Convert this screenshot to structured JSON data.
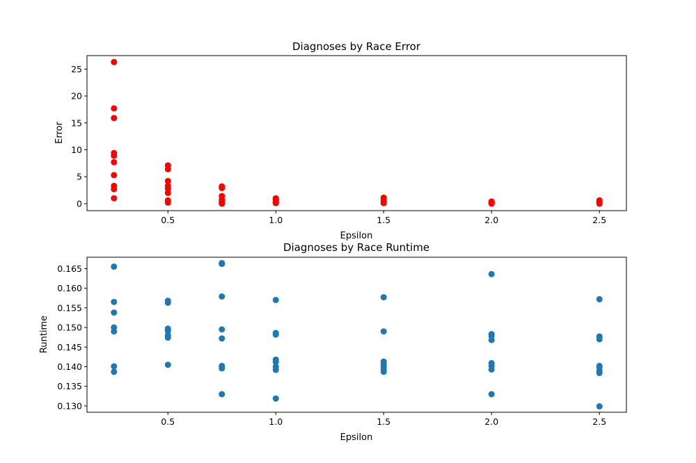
{
  "chart_data": [
    {
      "type": "scatter",
      "title": "Diagnoses by Race Error",
      "xlabel": "Epsilon",
      "ylabel": "Error",
      "xlim": [
        0.125,
        2.625
      ],
      "ylim": [
        -1.3,
        27.5
      ],
      "xticks": [
        0.5,
        1.0,
        1.5,
        2.0,
        2.5
      ],
      "xtick_labels": [
        "0.5",
        "1.0",
        "1.5",
        "2.0",
        "2.5"
      ],
      "yticks": [
        0,
        5,
        10,
        15,
        20,
        25
      ],
      "ytick_labels": [
        "0",
        "5",
        "10",
        "15",
        "20",
        "25"
      ],
      "color": "#ff0000",
      "series": [
        {
          "name": "Error",
          "points": [
            [
              0.25,
              26.3
            ],
            [
              0.25,
              17.7
            ],
            [
              0.25,
              15.9
            ],
            [
              0.25,
              9.4
            ],
            [
              0.25,
              8.9
            ],
            [
              0.25,
              7.7
            ],
            [
              0.25,
              5.3
            ],
            [
              0.25,
              3.3
            ],
            [
              0.25,
              2.7
            ],
            [
              0.25,
              1.0
            ],
            [
              0.5,
              7.1
            ],
            [
              0.5,
              6.4
            ],
            [
              0.5,
              4.2
            ],
            [
              0.5,
              3.3
            ],
            [
              0.5,
              2.8
            ],
            [
              0.5,
              2.0
            ],
            [
              0.5,
              0.6
            ],
            [
              0.5,
              0.2
            ],
            [
              0.75,
              3.2
            ],
            [
              0.75,
              2.9
            ],
            [
              0.75,
              1.4
            ],
            [
              0.75,
              0.7
            ],
            [
              0.75,
              0.4
            ],
            [
              0.75,
              0.1
            ],
            [
              0.75,
              0.0
            ],
            [
              1.0,
              1.0
            ],
            [
              1.0,
              0.7
            ],
            [
              1.0,
              0.4
            ],
            [
              1.0,
              0.2
            ],
            [
              1.0,
              0.1
            ],
            [
              1.5,
              1.1
            ],
            [
              1.5,
              0.8
            ],
            [
              1.5,
              0.5
            ],
            [
              1.5,
              0.2
            ],
            [
              1.5,
              0.1
            ],
            [
              2.0,
              0.4
            ],
            [
              2.0,
              0.2
            ],
            [
              2.0,
              0.1
            ],
            [
              2.0,
              0.0
            ],
            [
              2.5,
              0.6
            ],
            [
              2.5,
              0.3
            ],
            [
              2.5,
              0.1
            ],
            [
              2.5,
              0.0
            ]
          ]
        }
      ]
    },
    {
      "type": "scatter",
      "title": "Diagnoses by Race Runtime",
      "xlabel": "Epsilon",
      "ylabel": "Runtime",
      "xlim": [
        0.125,
        2.625
      ],
      "ylim": [
        0.1284,
        0.1679
      ],
      "xticks": [
        0.5,
        1.0,
        1.5,
        2.0,
        2.5
      ],
      "xtick_labels": [
        "0.5",
        "1.0",
        "1.5",
        "2.0",
        "2.5"
      ],
      "yticks": [
        0.13,
        0.135,
        0.14,
        0.145,
        0.15,
        0.155,
        0.16,
        0.165
      ],
      "ytick_labels": [
        "0.130",
        "0.135",
        "0.140",
        "0.145",
        "0.150",
        "0.155",
        "0.160",
        "0.165"
      ],
      "color": "#1f77b4",
      "series": [
        {
          "name": "Runtime",
          "points": [
            [
              0.25,
              0.1655
            ],
            [
              0.25,
              0.1565
            ],
            [
              0.25,
              0.1538
            ],
            [
              0.25,
              0.15
            ],
            [
              0.25,
              0.149
            ],
            [
              0.25,
              0.1401
            ],
            [
              0.25,
              0.1387
            ],
            [
              0.5,
              0.1568
            ],
            [
              0.5,
              0.1563
            ],
            [
              0.5,
              0.1497
            ],
            [
              0.5,
              0.1491
            ],
            [
              0.5,
              0.148
            ],
            [
              0.5,
              0.1474
            ],
            [
              0.5,
              0.1405
            ],
            [
              0.75,
              0.1662
            ],
            [
              0.75,
              0.1664
            ],
            [
              0.75,
              0.1579
            ],
            [
              0.75,
              0.1495
            ],
            [
              0.75,
              0.1472
            ],
            [
              0.75,
              0.1402
            ],
            [
              0.75,
              0.1396
            ],
            [
              0.75,
              0.133
            ],
            [
              1.0,
              0.157
            ],
            [
              1.0,
              0.1486
            ],
            [
              1.0,
              0.1482
            ],
            [
              1.0,
              0.1418
            ],
            [
              1.0,
              0.1412
            ],
            [
              1.0,
              0.14
            ],
            [
              1.0,
              0.1392
            ],
            [
              1.0,
              0.1319
            ],
            [
              1.5,
              0.1577
            ],
            [
              1.5,
              0.149
            ],
            [
              1.5,
              0.1413
            ],
            [
              1.5,
              0.1407
            ],
            [
              1.5,
              0.14
            ],
            [
              1.5,
              0.1393
            ],
            [
              1.5,
              0.1387
            ],
            [
              2.0,
              0.1636
            ],
            [
              2.0,
              0.1483
            ],
            [
              2.0,
              0.1478
            ],
            [
              2.0,
              0.1468
            ],
            [
              2.0,
              0.1409
            ],
            [
              2.0,
              0.1402
            ],
            [
              2.0,
              0.1393
            ],
            [
              2.0,
              0.133
            ],
            [
              2.5,
              0.1572
            ],
            [
              2.5,
              0.1477
            ],
            [
              2.5,
              0.147
            ],
            [
              2.5,
              0.1402
            ],
            [
              2.5,
              0.1399
            ],
            [
              2.5,
              0.139
            ],
            [
              2.5,
              0.1384
            ],
            [
              2.5,
              0.1299
            ]
          ]
        }
      ]
    }
  ]
}
